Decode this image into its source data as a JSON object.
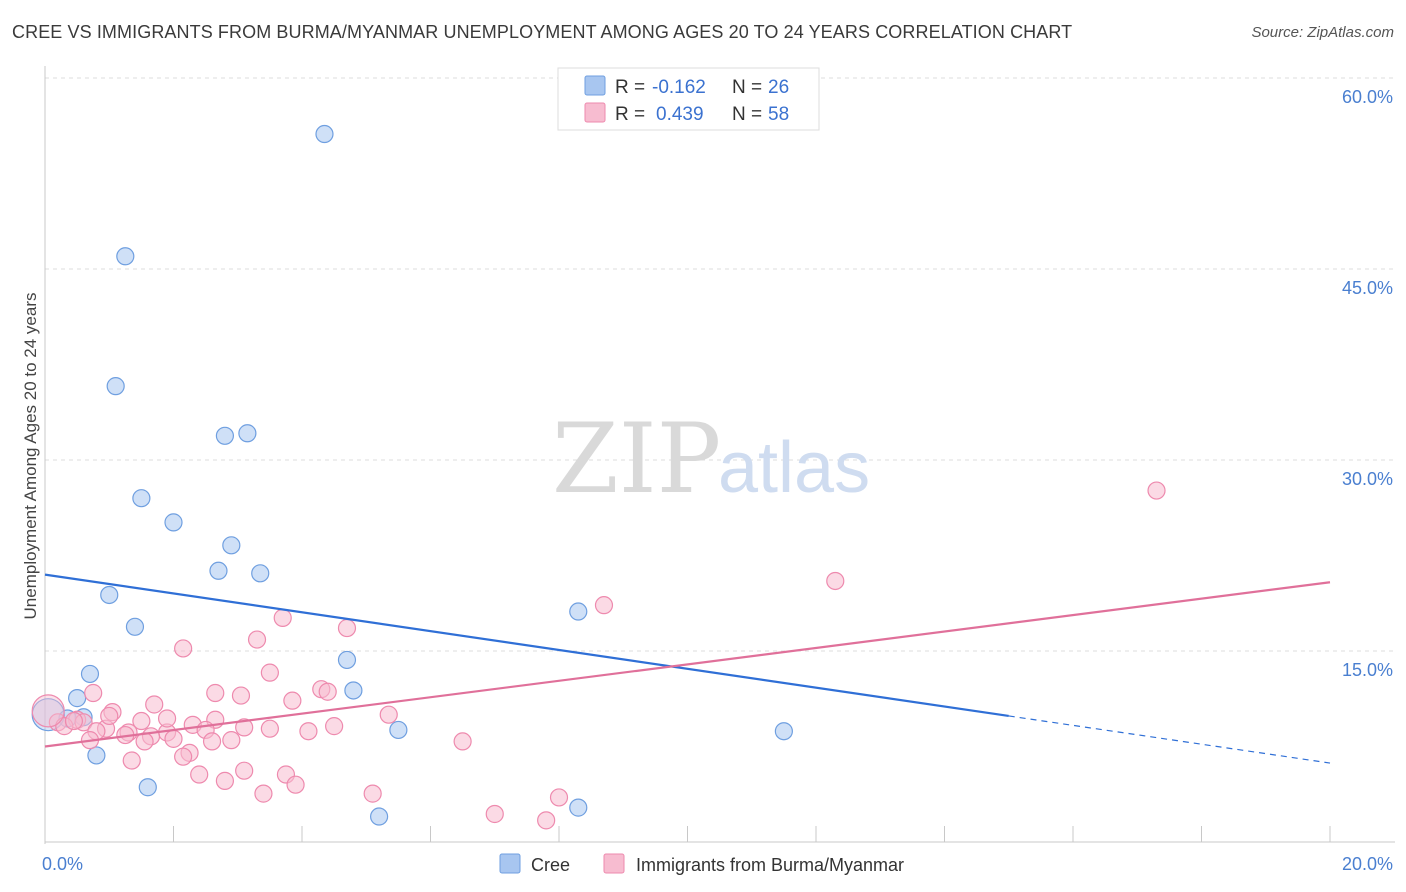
{
  "chart_data": {
    "type": "scatter",
    "title": "CREE VS IMMIGRANTS FROM BURMA/MYANMAR UNEMPLOYMENT AMONG AGES 20 TO 24 YEARS CORRELATION CHART",
    "source": "Source: ZipAtlas.com",
    "xlabel": "",
    "ylabel": "Unemployment Among Ages 20 to 24 years",
    "xlim": [
      0,
      20
    ],
    "ylim": [
      0,
      60
    ],
    "x_tick_labels": {
      "min": "0.0%",
      "max": "20.0%"
    },
    "y_tick_labels": [
      "15.0%",
      "30.0%",
      "45.0%",
      "60.0%"
    ],
    "y_tick_values": [
      15,
      30,
      45,
      60
    ],
    "x_tick_values": [
      0,
      2,
      4,
      6,
      8,
      10,
      12,
      14,
      16,
      18,
      20
    ],
    "grid": true,
    "watermark": {
      "zip": "ZIP",
      "atlas": "atlas"
    },
    "legend": {
      "r_label": "R =",
      "n_label": "N =",
      "entries": [
        {
          "name": "Cree",
          "r": "-0.162",
          "n": "26",
          "color": "#a8c6f0",
          "edge": "#6f9fe0"
        },
        {
          "name": "Immigrants from Burma/Myanmar",
          "r": "0.439",
          "n": "58",
          "color": "#f7bcd0",
          "edge": "#ee8aae"
        }
      ]
    },
    "series": [
      {
        "name": "Cree",
        "color": "#a8c6f0",
        "edge": "#6f9fe0",
        "line_color": "#2f6fd6",
        "trend": {
          "x0": 0,
          "y0": 21.0,
          "x1": 15.0,
          "y1": 9.9,
          "dash_to_x": 20.0,
          "dash_to_y": 6.2
        },
        "points": [
          [
            4.35,
            55.6
          ],
          [
            1.25,
            46.0
          ],
          [
            1.1,
            35.8
          ],
          [
            2.8,
            31.9
          ],
          [
            3.15,
            32.1
          ],
          [
            1.5,
            27.0
          ],
          [
            2.0,
            25.1
          ],
          [
            2.9,
            23.3
          ],
          [
            2.7,
            21.3
          ],
          [
            3.35,
            21.1
          ],
          [
            1.0,
            19.4
          ],
          [
            1.4,
            16.9
          ],
          [
            8.3,
            18.1
          ],
          [
            4.7,
            14.3
          ],
          [
            0.7,
            13.2
          ],
          [
            0.5,
            11.3
          ],
          [
            4.8,
            11.9
          ],
          [
            0.6,
            9.8
          ],
          [
            0.35,
            9.7
          ],
          [
            5.5,
            8.8
          ],
          [
            11.5,
            8.7
          ],
          [
            0.8,
            6.8
          ],
          [
            1.6,
            4.3
          ],
          [
            5.2,
            2.0
          ],
          [
            8.3,
            2.7
          ],
          [
            0.05,
            10.0
          ]
        ]
      },
      {
        "name": "Immigrants from Burma/Myanmar",
        "color": "#f7bcd0",
        "edge": "#ee8aae",
        "line_color": "#e0709a",
        "trend": {
          "x0": 0,
          "y0": 7.5,
          "x1": 20.0,
          "y1": 20.4
        },
        "points": [
          [
            17.3,
            27.6
          ],
          [
            12.3,
            20.5
          ],
          [
            8.7,
            18.6
          ],
          [
            3.7,
            17.6
          ],
          [
            4.7,
            16.8
          ],
          [
            3.3,
            15.9
          ],
          [
            2.15,
            15.2
          ],
          [
            3.5,
            13.3
          ],
          [
            0.75,
            11.7
          ],
          [
            2.65,
            11.7
          ],
          [
            3.05,
            11.5
          ],
          [
            4.3,
            12.0
          ],
          [
            4.4,
            11.8
          ],
          [
            3.85,
            11.1
          ],
          [
            1.7,
            10.8
          ],
          [
            5.35,
            10.0
          ],
          [
            1.05,
            10.2
          ],
          [
            2.65,
            9.6
          ],
          [
            1.5,
            9.5
          ],
          [
            0.5,
            9.6
          ],
          [
            0.6,
            9.4
          ],
          [
            2.3,
            9.2
          ],
          [
            4.5,
            9.1
          ],
          [
            3.5,
            8.9
          ],
          [
            3.1,
            9.0
          ],
          [
            0.95,
            8.9
          ],
          [
            0.8,
            8.7
          ],
          [
            1.3,
            8.6
          ],
          [
            1.9,
            8.6
          ],
          [
            1.25,
            8.4
          ],
          [
            4.1,
            8.7
          ],
          [
            2.5,
            8.8
          ],
          [
            1.65,
            8.3
          ],
          [
            2.0,
            8.1
          ],
          [
            2.9,
            8.0
          ],
          [
            0.7,
            8.0
          ],
          [
            1.55,
            7.9
          ],
          [
            2.6,
            7.9
          ],
          [
            6.5,
            7.9
          ],
          [
            2.25,
            7.0
          ],
          [
            2.15,
            6.7
          ],
          [
            1.35,
            6.4
          ],
          [
            3.1,
            5.6
          ],
          [
            2.4,
            5.3
          ],
          [
            3.75,
            5.3
          ],
          [
            2.8,
            4.8
          ],
          [
            3.9,
            4.5
          ],
          [
            5.1,
            3.8
          ],
          [
            3.4,
            3.8
          ],
          [
            8.0,
            3.5
          ],
          [
            7.0,
            2.2
          ],
          [
            7.8,
            1.7
          ],
          [
            0.2,
            9.4
          ],
          [
            0.3,
            9.1
          ],
          [
            0.45,
            9.5
          ],
          [
            1.0,
            9.9
          ],
          [
            1.9,
            9.7
          ],
          [
            0.05,
            10.3
          ]
        ]
      }
    ],
    "bottom_legend": [
      "Cree",
      "Immigrants from Burma/Myanmar"
    ]
  }
}
